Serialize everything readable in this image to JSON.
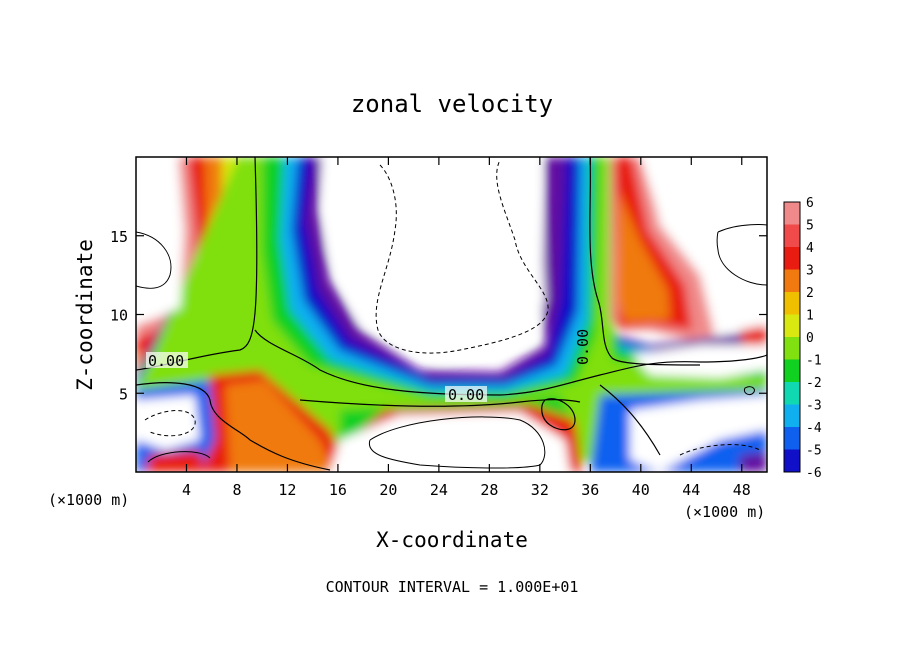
{
  "chart_data": {
    "type": "heatmap",
    "title": "zonal velocity",
    "xlabel": "X-coordinate",
    "ylabel": "Z-coordinate",
    "x_unit_label": "(×1000 m)",
    "x_unit_label_right": "(×1000 m)",
    "footer": "CONTOUR INTERVAL = 1.000E+01",
    "xlim": [
      0,
      50
    ],
    "ylim": [
      0,
      20
    ],
    "x_ticks": [
      4,
      8,
      12,
      16,
      20,
      24,
      28,
      32,
      36,
      40,
      44,
      48
    ],
    "y_ticks": [
      5,
      10,
      15
    ],
    "colorbar": {
      "levels": [
        6,
        5,
        4,
        3,
        2,
        1,
        0,
        -1,
        -2,
        -3,
        -4,
        -5,
        -6
      ],
      "colors": [
        "#f08a8a",
        "#f04a4a",
        "#e81c10",
        "#f07a10",
        "#f0c000",
        "#d8e810",
        "#80e010",
        "#10d020",
        "#10d8b0",
        "#10b0f0",
        "#1060f0",
        "#1010c8",
        "#6010a0"
      ]
    },
    "contour_labels": [
      {
        "text": "0.00",
        "x": 2.5,
        "z": 7.0
      },
      {
        "text": "0.00",
        "x": 26.0,
        "z": 4.9
      },
      {
        "text": "0.00",
        "x": 36.0,
        "z": 8.0
      }
    ]
  }
}
